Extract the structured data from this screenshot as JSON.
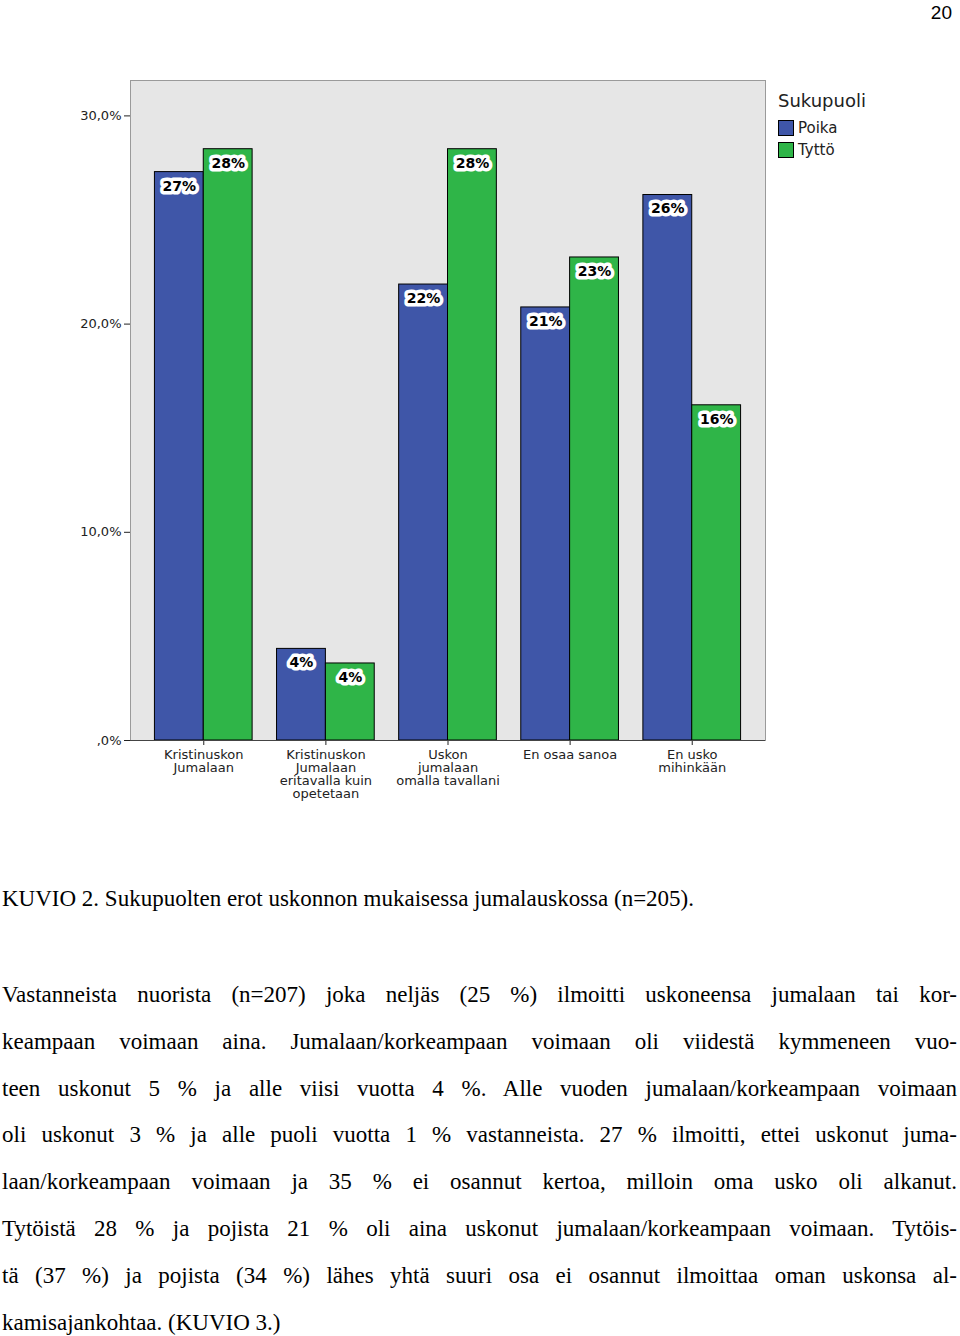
{
  "page_number": "20",
  "chart_data": {
    "type": "bar",
    "categories": [
      "Kristinuskon\nJumalaan",
      "Kristinuskon\nJumalaan\neritavalla kuin\nopetetaan",
      "Uskon\njumalaan\nomalla tavallani",
      "En osaa sanoa",
      "En usko\nmihinkään"
    ],
    "series": [
      {
        "name": "Poika",
        "color": "#3f56a8",
        "values": [
          27.3,
          4.4,
          21.9,
          20.8,
          26.2
        ],
        "value_labels": [
          "27%",
          "4%",
          "22%",
          "21%",
          "26%"
        ]
      },
      {
        "name": "Tyttö",
        "color": "#2fb548",
        "values": [
          28.4,
          3.7,
          28.4,
          23.2,
          16.1
        ],
        "value_labels": [
          "28%",
          "4%",
          "28%",
          "23%",
          "16%"
        ]
      }
    ],
    "ylim": [
      0,
      31.7
    ],
    "yticks": [
      {
        "value": 0,
        "label": ",0%"
      },
      {
        "value": 10,
        "label": "10,0%"
      },
      {
        "value": 20,
        "label": "20,0%"
      },
      {
        "value": 30,
        "label": "30,0%"
      }
    ],
    "legend": "right",
    "legend_title": "Sukupuoli",
    "data_labels": true,
    "grid": false
  },
  "caption": "KUVIO 2. Sukupuolten erot uskonnon mukaisessa jumalauskossa (n=205).",
  "body_lines": [
    "Vastanneista nuorista (n=207) joka neljäs (25 %) ilmoitti uskoneensa jumalaan tai kor-",
    "keampaan voimaan aina. Jumalaan/korkeampaan voimaan oli viidestä kymmeneen vuo-",
    "teen uskonut 5 % ja alle viisi vuotta 4 %. Alle vuoden jumalaan/korkeampaan voimaan",
    "oli uskonut 3 % ja alle puoli vuotta 1 % vastanneista. 27 % ilmoitti, ettei uskonut juma-",
    "laan/korkeampaan voimaan ja 35 % ei osannut kertoa, milloin oma usko oli alkanut.",
    "Tytöistä 28 % ja pojista 21 % oli aina uskonut jumalaan/korkeampaan voimaan. Tytöis-",
    "tä (37 %) ja pojista (34 %) lähes yhtä suuri osa ei osannut ilmoittaa oman uskonsa al-",
    "kamisajankohtaa. (KUVIO 3.)"
  ]
}
